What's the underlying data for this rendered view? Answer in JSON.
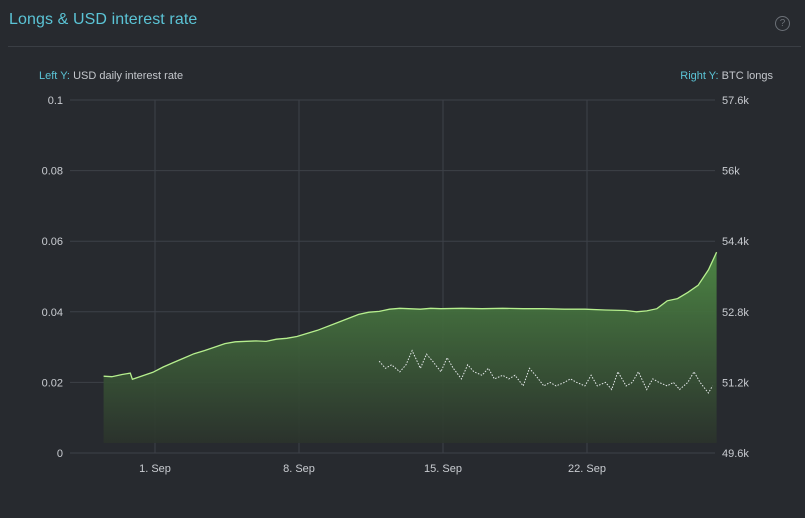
{
  "header": {
    "title": "Longs & USD interest rate",
    "help_icon": "question-circle-icon"
  },
  "captions": {
    "left_prefix": "Left Y:",
    "left_label": "USD daily interest rate",
    "right_prefix": "Right Y:",
    "right_label": "BTC longs"
  },
  "colors": {
    "panel": "#272a2f",
    "accent": "#5bc4d6",
    "area_top": "#4e8a45",
    "area_bottom": "#2b332c",
    "area_line": "#b6ef8e",
    "dotted_line": "#e8ebee",
    "grid": "#3d4148"
  },
  "chart_data": {
    "type": "area",
    "x_ticks": [
      "1. Sep",
      "8. Sep",
      "15. Sep",
      "22. Sep"
    ],
    "left_axis": {
      "label": "USD daily interest rate",
      "ticks": [
        "0",
        "0.02",
        "0.04",
        "0.06",
        "0.08",
        "0.1"
      ],
      "ylim": [
        0,
        0.1
      ]
    },
    "right_axis": {
      "label": "BTC longs",
      "ticks": [
        "49.6k",
        "51.2k",
        "52.8k",
        "54.4k",
        "56k",
        "57.6k"
      ],
      "ylim": [
        49600,
        57600
      ]
    },
    "x_range": [
      27.6,
      57.4
    ],
    "series": [
      {
        "name": "BTC longs",
        "axis": "right",
        "style": "area",
        "x": [
          27.6,
          28.0,
          28.5,
          28.9,
          29.0,
          29.5,
          30.0,
          30.5,
          31.0,
          31.5,
          32.0,
          32.5,
          33.0,
          33.5,
          34.0,
          35.0,
          35.5,
          36.0,
          36.5,
          37.0,
          38.0,
          39.0,
          40.0,
          40.5,
          41.0,
          41.5,
          42.0,
          43.0,
          43.5,
          44.0,
          45.0,
          46.0,
          47.0,
          48.0,
          49.0,
          50.0,
          51.0,
          52.0,
          53.0,
          53.5,
          54.0,
          54.5,
          55.0,
          55.5,
          56.0,
          56.5,
          57.0,
          57.4
        ],
        "y": [
          51.34,
          51.33,
          51.38,
          51.41,
          51.27,
          51.35,
          51.43,
          51.55,
          51.65,
          51.75,
          51.85,
          51.92,
          52.0,
          52.08,
          52.12,
          52.14,
          52.13,
          52.18,
          52.2,
          52.24,
          52.38,
          52.56,
          52.74,
          52.79,
          52.81,
          52.86,
          52.88,
          52.86,
          52.88,
          52.87,
          52.88,
          52.87,
          52.88,
          52.87,
          52.87,
          52.86,
          52.86,
          52.84,
          52.83,
          52.8,
          52.82,
          52.87,
          53.05,
          53.1,
          53.24,
          53.4,
          53.75,
          54.15
        ]
      },
      {
        "name": "USD daily interest rate",
        "axis": "left",
        "style": "dotted",
        "x": [
          41.0,
          41.3,
          41.6,
          42.0,
          42.3,
          42.6,
          43.0,
          43.3,
          43.6,
          44.0,
          44.3,
          44.6,
          45.0,
          45.3,
          45.6,
          46.0,
          46.3,
          46.6,
          47.0,
          47.3,
          47.6,
          48.0,
          48.3,
          48.6,
          49.0,
          49.3,
          49.6,
          50.0,
          50.3,
          50.6,
          51.0,
          51.3,
          51.6,
          52.0,
          52.3,
          52.6,
          53.0,
          53.3,
          53.6,
          54.0,
          54.3,
          54.6,
          55.0,
          55.3,
          55.6,
          56.0,
          56.3,
          56.6,
          57.0,
          57.2
        ],
        "y": [
          0.026,
          0.024,
          0.025,
          0.023,
          0.025,
          0.029,
          0.024,
          0.028,
          0.026,
          0.023,
          0.027,
          0.024,
          0.021,
          0.025,
          0.023,
          0.022,
          0.024,
          0.021,
          0.022,
          0.021,
          0.022,
          0.019,
          0.024,
          0.022,
          0.019,
          0.02,
          0.019,
          0.02,
          0.021,
          0.02,
          0.019,
          0.022,
          0.019,
          0.02,
          0.018,
          0.023,
          0.019,
          0.02,
          0.023,
          0.018,
          0.021,
          0.02,
          0.019,
          0.02,
          0.018,
          0.02,
          0.023,
          0.02,
          0.017,
          0.019
        ]
      }
    ],
    "legend": "none",
    "grid": true
  }
}
